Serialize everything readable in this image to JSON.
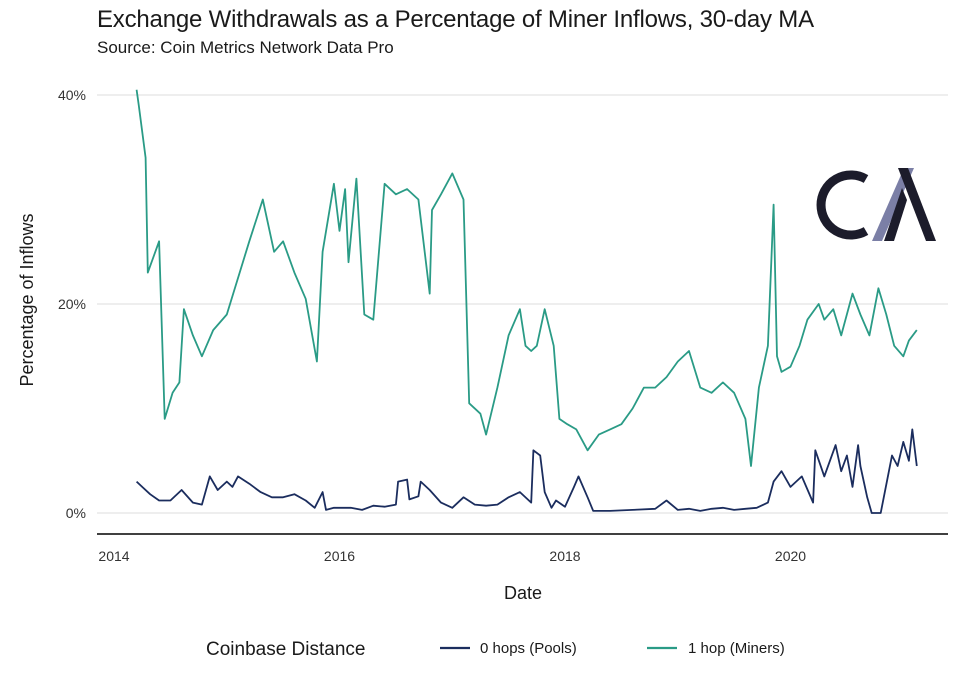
{
  "title": "Exchange Withdrawals as a Percentage of Miner Inflows, 30-day MA",
  "subtitle": "Source: Coin Metrics Network Data Pro",
  "logo": {
    "icon": "coin-metrics-cm-logo",
    "text": "CM",
    "colors": {
      "dark": "#1c1c2b",
      "accent": "#7b7fa6"
    }
  },
  "colors": {
    "pools": "#1b2d5e",
    "miners": "#2a9b86",
    "grid": "#e3e3e3",
    "axis": "#000000"
  },
  "chart_data": {
    "type": "line",
    "title": "Exchange Withdrawals as a Percentage of Miner Inflows, 30-day MA",
    "xlabel": "Date",
    "ylabel": "Percentage of Inflows",
    "xlim": [
      2014.0,
      2021.15
    ],
    "ylim": [
      0,
      40
    ],
    "x_ticks": [
      2014,
      2016,
      2018,
      2020
    ],
    "x_tick_labels": [
      "2014",
      "2016",
      "2018",
      "2020"
    ],
    "y_ticks": [
      0,
      20,
      40
    ],
    "y_tick_labels": [
      "0%",
      "20%",
      "40%"
    ],
    "grid": "horizontal",
    "legend": {
      "title": "Coinbase Distance",
      "position": "bottom"
    },
    "series": [
      {
        "name": "0 hops (Pools)",
        "color": "#1b2d5e",
        "x": [
          2014.2,
          2014.25,
          2014.32,
          2014.4,
          2014.5,
          2014.6,
          2014.7,
          2014.78,
          2014.85,
          2014.92,
          2015.0,
          2015.05,
          2015.1,
          2015.2,
          2015.3,
          2015.4,
          2015.5,
          2015.6,
          2015.7,
          2015.78,
          2015.85,
          2015.88,
          2015.95,
          2016.1,
          2016.2,
          2016.3,
          2016.4,
          2016.5,
          2016.52,
          2016.6,
          2016.62,
          2016.7,
          2016.72,
          2016.8,
          2016.9,
          2017.0,
          2017.1,
          2017.2,
          2017.3,
          2017.4,
          2017.5,
          2017.6,
          2017.7,
          2017.72,
          2017.78,
          2017.82,
          2017.88,
          2017.92,
          2018.0,
          2018.08,
          2018.12,
          2018.2,
          2018.25,
          2018.3,
          2018.4,
          2018.6,
          2018.8,
          2018.9,
          2019.0,
          2019.1,
          2019.2,
          2019.3,
          2019.4,
          2019.5,
          2019.6,
          2019.7,
          2019.8,
          2019.85,
          2019.92,
          2020.0,
          2020.1,
          2020.2,
          2020.22,
          2020.3,
          2020.4,
          2020.45,
          2020.5,
          2020.55,
          2020.6,
          2020.62,
          2020.68,
          2020.72,
          2020.8,
          2020.9,
          2020.95,
          2021.0,
          2021.05,
          2021.08,
          2021.12
        ],
        "values": [
          3.0,
          2.5,
          1.8,
          1.2,
          1.2,
          2.2,
          1.0,
          0.8,
          3.5,
          2.2,
          3.0,
          2.5,
          3.5,
          2.8,
          2.0,
          1.5,
          1.5,
          1.8,
          1.2,
          0.5,
          2.0,
          0.3,
          0.5,
          0.5,
          0.3,
          0.7,
          0.6,
          0.8,
          3.0,
          3.2,
          1.3,
          1.6,
          3.0,
          2.2,
          1.0,
          0.5,
          1.5,
          0.8,
          0.7,
          0.8,
          1.5,
          2.0,
          1.0,
          6.0,
          5.5,
          2.0,
          0.5,
          1.2,
          0.6,
          2.5,
          3.5,
          1.5,
          0.2,
          0.2,
          0.2,
          0.3,
          0.4,
          1.2,
          0.3,
          0.4,
          0.2,
          0.4,
          0.5,
          0.3,
          0.4,
          0.5,
          1.0,
          3.0,
          4.0,
          2.5,
          3.5,
          1.0,
          6.0,
          3.5,
          6.5,
          4.0,
          5.5,
          2.5,
          6.5,
          4.5,
          1.5,
          0.0,
          0.0,
          5.5,
          4.5,
          6.8,
          5.0,
          8.0,
          4.5
        ]
      },
      {
        "name": "1 hop (Miners)",
        "color": "#2a9b86",
        "x": [
          2014.2,
          2014.22,
          2014.28,
          2014.3,
          2014.4,
          2014.45,
          2014.52,
          2014.58,
          2014.62,
          2014.7,
          2014.78,
          2014.88,
          2015.0,
          2015.2,
          2015.32,
          2015.42,
          2015.5,
          2015.6,
          2015.7,
          2015.8,
          2015.85,
          2015.95,
          2016.0,
          2016.05,
          2016.08,
          2016.15,
          2016.22,
          2016.3,
          2016.4,
          2016.5,
          2016.6,
          2016.7,
          2016.8,
          2016.82,
          2016.9,
          2017.0,
          2017.1,
          2017.15,
          2017.25,
          2017.3,
          2017.4,
          2017.5,
          2017.6,
          2017.65,
          2017.7,
          2017.75,
          2017.82,
          2017.9,
          2017.95,
          2018.02,
          2018.1,
          2018.2,
          2018.3,
          2018.4,
          2018.5,
          2018.6,
          2018.7,
          2018.8,
          2018.9,
          2019.0,
          2019.1,
          2019.2,
          2019.3,
          2019.4,
          2019.5,
          2019.6,
          2019.65,
          2019.72,
          2019.8,
          2019.85,
          2019.88,
          2019.92,
          2020.0,
          2020.08,
          2020.15,
          2020.25,
          2020.3,
          2020.38,
          2020.45,
          2020.55,
          2020.62,
          2020.7,
          2020.78,
          2020.85,
          2020.92,
          2021.0,
          2021.05,
          2021.12
        ],
        "values": [
          40.5,
          39.0,
          34.0,
          23.0,
          26.0,
          9.0,
          11.5,
          12.5,
          19.5,
          17.0,
          15.0,
          17.5,
          19.0,
          26.0,
          30.0,
          25.0,
          26.0,
          23.0,
          20.5,
          14.5,
          25.0,
          31.5,
          27.0,
          31.0,
          24.0,
          32.0,
          19.0,
          18.5,
          31.5,
          30.5,
          31.0,
          30.0,
          21.0,
          29.0,
          30.5,
          32.5,
          30.0,
          10.5,
          9.5,
          7.5,
          12.0,
          17.0,
          19.5,
          16.0,
          15.5,
          16.0,
          19.5,
          16.0,
          9.0,
          8.5,
          8.0,
          6.0,
          7.5,
          8.0,
          8.5,
          10.0,
          12.0,
          12.0,
          13.0,
          14.5,
          15.5,
          12.0,
          11.5,
          12.5,
          11.5,
          9.0,
          4.5,
          12.0,
          16.0,
          29.5,
          15.0,
          13.5,
          14.0,
          16.0,
          18.5,
          20.0,
          18.5,
          19.5,
          17.0,
          21.0,
          19.0,
          17.0,
          21.5,
          19.0,
          16.0,
          15.0,
          16.5,
          17.5
        ]
      }
    ]
  }
}
